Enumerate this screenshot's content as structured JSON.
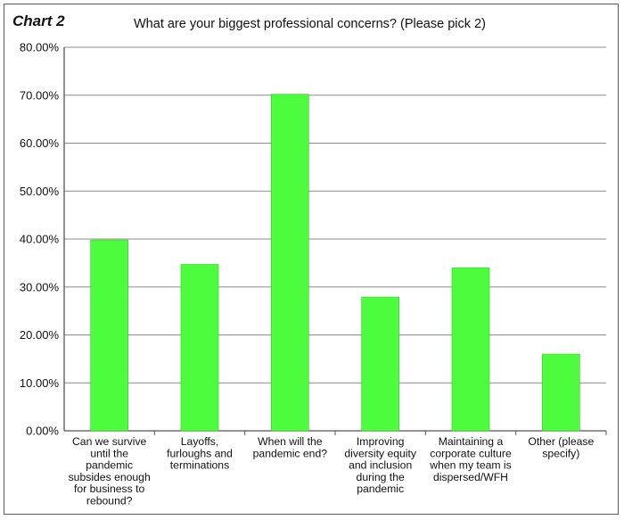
{
  "chart_label": "Chart 2",
  "chart_data": {
    "type": "bar",
    "title": "What are your biggest professional concerns? (Please pick 2)",
    "xlabel": "",
    "ylabel": "",
    "ylim": [
      0,
      80
    ],
    "yticks": [
      "0.00%",
      "10.00%",
      "20.00%",
      "30.00%",
      "40.00%",
      "50.00%",
      "60.00%",
      "70.00%",
      "80.00%"
    ],
    "categories": [
      [
        "Can we survive",
        "until the",
        "pandemic",
        "subsides enough",
        "for business to",
        "rebound?"
      ],
      [
        "Layoffs,",
        "furloughs and",
        "terminations"
      ],
      [
        "When will the",
        "pandemic end?"
      ],
      [
        "Improving",
        "diversity equity",
        "and inclusion",
        "during the",
        "pandemic"
      ],
      [
        "Maintaining a",
        "corporate culture",
        "when my team is",
        "dispersed/WFH"
      ],
      [
        "Other (please",
        "specify)"
      ]
    ],
    "values": [
      39.8,
      34.7,
      70.2,
      27.9,
      34.0,
      16.0
    ],
    "grid": true,
    "bar_color": "#4dfc3c"
  }
}
